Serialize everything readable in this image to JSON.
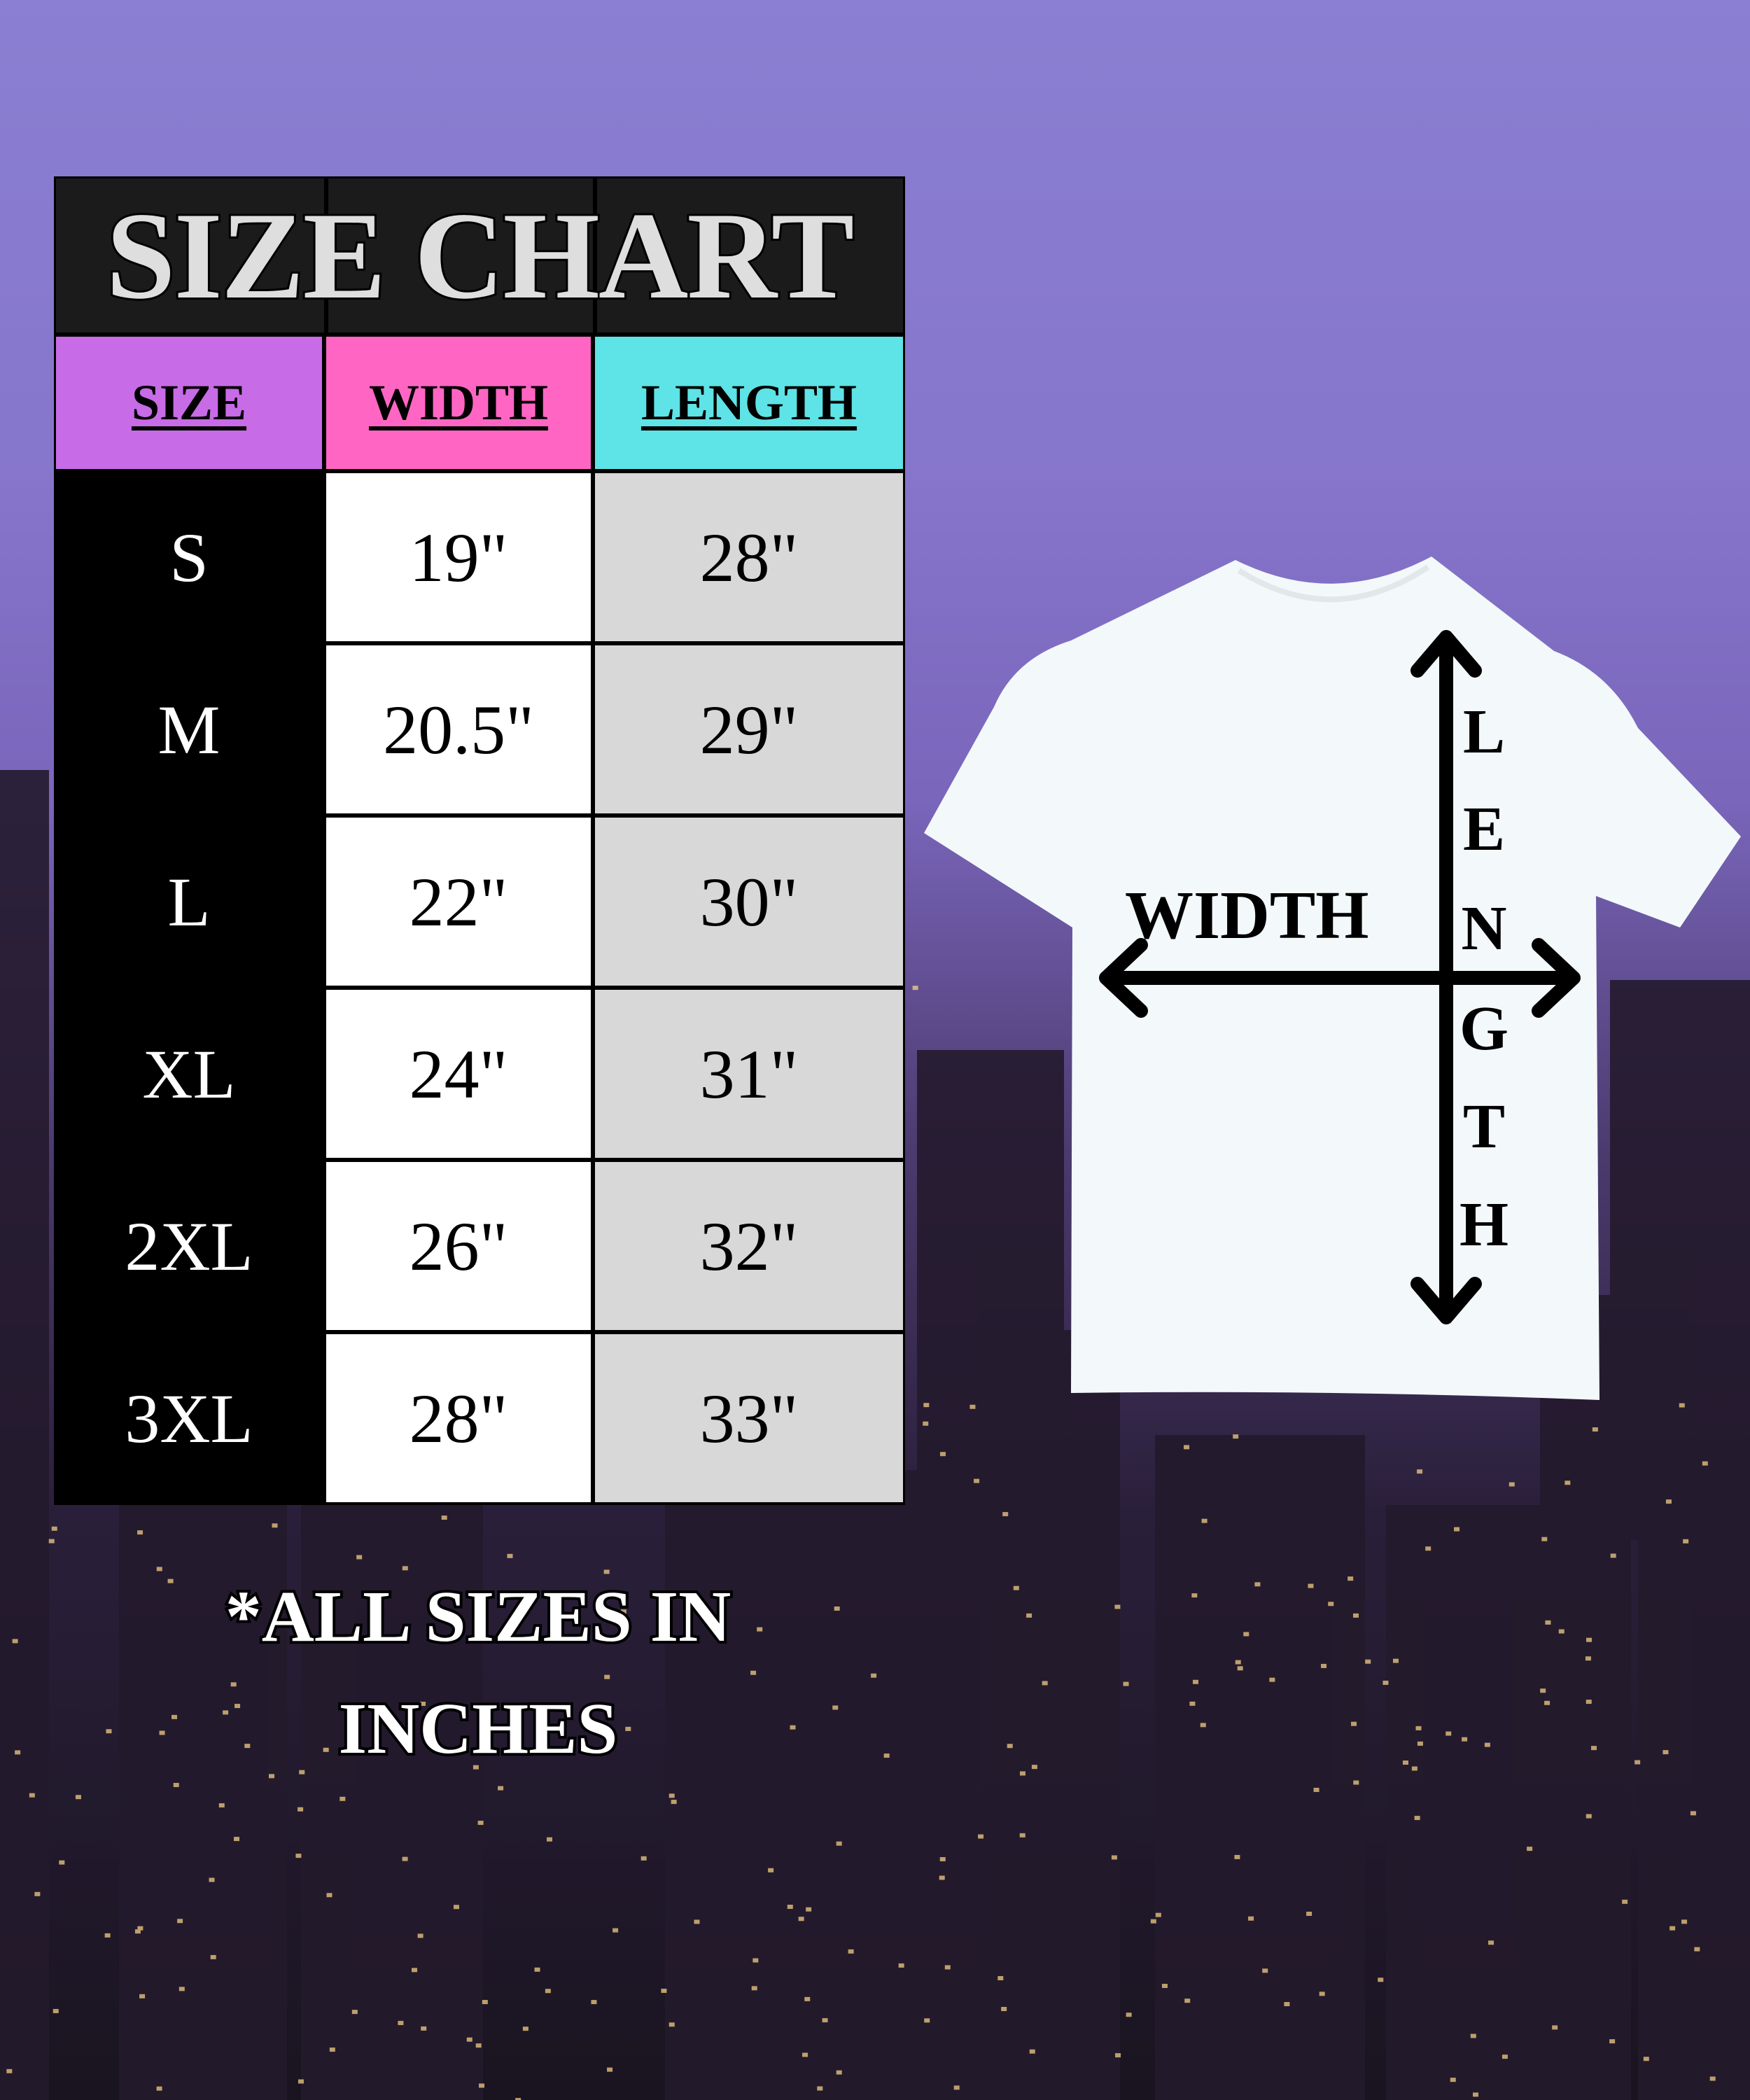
{
  "title": "SIZE CHART",
  "headers": {
    "size": "SIZE",
    "width": "WIDTH",
    "length": "LENGTH"
  },
  "colors": {
    "size_header": "#c76be6",
    "width_header": "#ff66c4",
    "length_header": "#5ee3e6",
    "title_bg": "#1b1b1b",
    "length_cells": "#d8d8d8"
  },
  "rows": [
    {
      "size": "S",
      "width": "19\"",
      "length": "28\""
    },
    {
      "size": "M",
      "width": "20.5\"",
      "length": "29\""
    },
    {
      "size": "L",
      "width": "22\"",
      "length": "30\""
    },
    {
      "size": "XL",
      "width": "24\"",
      "length": "31\""
    },
    {
      "size": "2XL",
      "width": "26\"",
      "length": "32\""
    },
    {
      "size": "3XL",
      "width": "28\"",
      "length": "33\""
    }
  ],
  "diagram": {
    "width_label": "WIDTH",
    "length_letters": [
      "L",
      "E",
      "N",
      "G",
      "T",
      "H"
    ]
  },
  "footnote": {
    "line1": "*ALL SIZES IN",
    "line2": "INCHES"
  }
}
